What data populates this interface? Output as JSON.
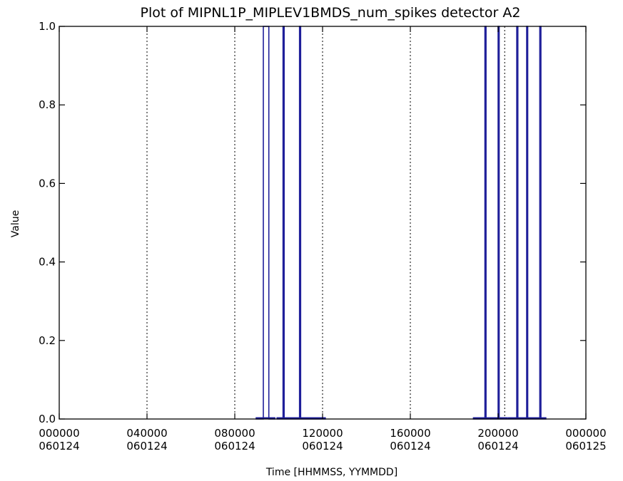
{
  "chart_data": {
    "type": "line",
    "title": "Plot of MIPNL1P_MIPLEV1BMDS_num_spikes detector A2",
    "xlabel": "Time [HHMMSS, YYMMDD]",
    "ylabel": "Value",
    "xlim": [
      0,
      24
    ],
    "ylim": [
      0.0,
      1.0
    ],
    "x_unit": "hours since 000000 060124",
    "grid": false,
    "x_ticks": [
      {
        "x": 0,
        "time": "000000",
        "date": "060124"
      },
      {
        "x": 4,
        "time": "040000",
        "date": "060124"
      },
      {
        "x": 8,
        "time": "080000",
        "date": "060124"
      },
      {
        "x": 12,
        "time": "120000",
        "date": "060124"
      },
      {
        "x": 16,
        "time": "160000",
        "date": "060124"
      },
      {
        "x": 20,
        "time": "200000",
        "date": "060124"
      },
      {
        "x": 24,
        "time": "000000",
        "date": "060125"
      }
    ],
    "y_ticks": [
      "0.0",
      "0.2",
      "0.4",
      "0.6",
      "0.8",
      "1.0"
    ],
    "y_tick_values": [
      0.0,
      0.2,
      0.4,
      0.6,
      0.8,
      1.0
    ],
    "vertical_dotted_lines_x": [
      4.0,
      8.0,
      12.0,
      16.0,
      20.3
    ],
    "series": [
      {
        "color": "#1f1f9a",
        "segments": [
          {
            "x": [
              8.95,
              9.3,
              9.3,
              9.55,
              9.55,
              9.85
            ],
            "y": [
              0,
              0,
              1,
              1,
              0,
              0
            ]
          },
          {
            "x": [
              9.9,
              10.2,
              10.2,
              10.25,
              10.25,
              10.95,
              10.95,
              11.0,
              11.0,
              12.15
            ],
            "y": [
              0,
              0,
              1,
              1,
              0,
              0,
              1,
              1,
              0,
              0
            ]
          },
          {
            "x": [
              18.85,
              19.4,
              19.4,
              19.45,
              19.45,
              20.0,
              20.0,
              20.05,
              20.05,
              20.45
            ],
            "y": [
              0,
              0,
              1,
              1,
              0,
              0,
              1,
              1,
              0,
              0
            ]
          },
          {
            "x": [
              20.45,
              20.85,
              20.85,
              20.9,
              20.9,
              21.3,
              21.3,
              21.35,
              21.35,
              21.9,
              21.9,
              21.95,
              21.95,
              22.2
            ],
            "y": [
              0,
              0,
              1,
              1,
              0,
              0,
              1,
              1,
              0,
              0,
              1,
              1,
              0,
              0
            ]
          }
        ]
      }
    ]
  }
}
